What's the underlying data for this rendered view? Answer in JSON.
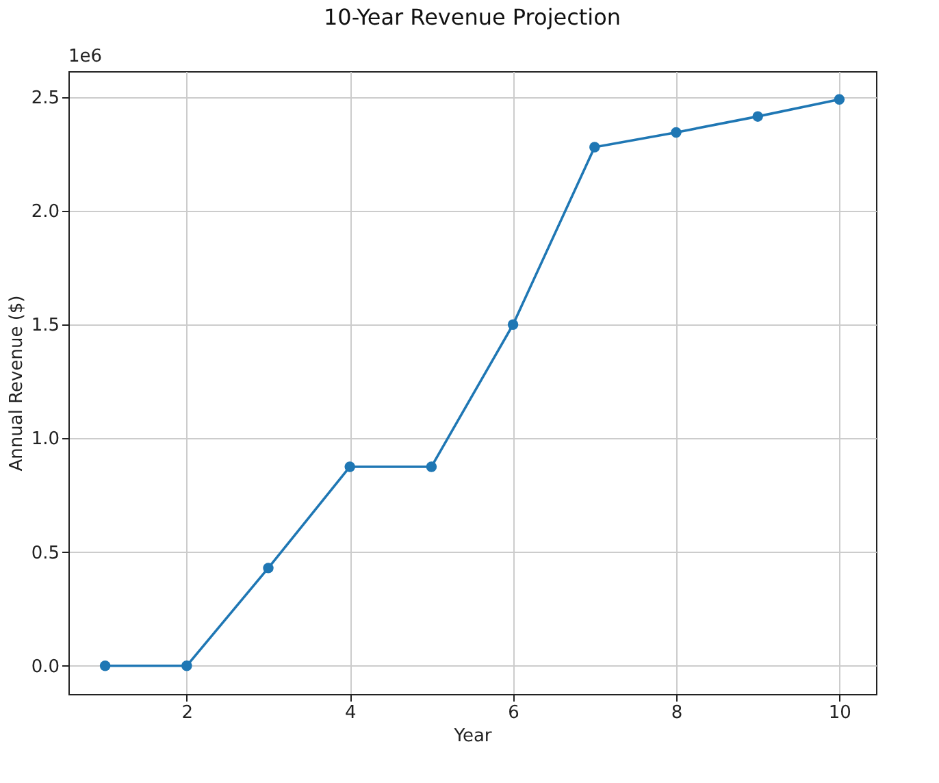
{
  "chart_data": {
    "type": "line",
    "title": "10-Year Revenue Projection",
    "xlabel": "Year",
    "ylabel": "Annual Revenue ($)",
    "x": [
      1,
      2,
      3,
      4,
      5,
      6,
      7,
      8,
      9,
      10
    ],
    "series": [
      {
        "color": "#1f77b4",
        "values": [
          0,
          0,
          0.43,
          0.875,
          0.875,
          1.5,
          2.28,
          2.345,
          2.415,
          2.49
        ]
      }
    ],
    "xlim": [
      0.55,
      10.45
    ],
    "xticks": [
      2,
      4,
      6,
      8,
      10
    ],
    "ylim": [
      -0.124,
      2.614
    ],
    "yticks": [
      {
        "value": 0,
        "label": "0.0"
      },
      0.5,
      {
        "value": 1,
        "label": "1.0"
      },
      1.5,
      {
        "value": 2,
        "label": "2.0"
      },
      2.5
    ],
    "annotations": [
      "1e6"
    ],
    "grid": true,
    "marker": "circle",
    "line_style": "solid"
  }
}
